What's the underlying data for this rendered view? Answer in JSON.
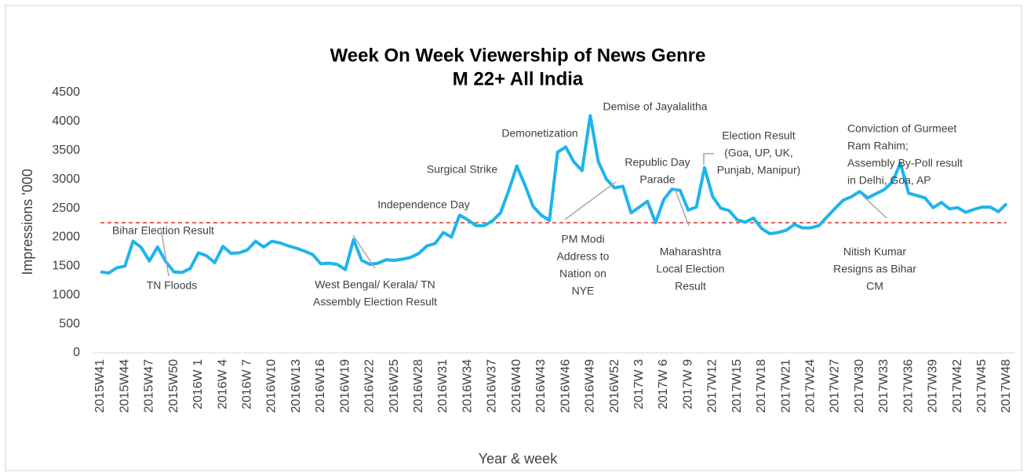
{
  "chart_data": {
    "type": "line",
    "title": [
      "Week On Week Viewership of News Genre",
      "M 22+ All India"
    ],
    "y_label": "Impressions '000",
    "x_label": "Year & week",
    "categories": [
      "2015W41",
      null,
      null,
      "2015W44",
      null,
      null,
      "2015W47",
      null,
      null,
      "2015W50",
      null,
      null,
      "2016W 1",
      null,
      null,
      "2016W 4",
      null,
      null,
      "2016W 7",
      null,
      null,
      "2016W10",
      null,
      null,
      "2016W13",
      null,
      null,
      "2016W16",
      null,
      null,
      "2016W19",
      null,
      null,
      "2016W22",
      null,
      null,
      "2016W25",
      null,
      null,
      "2016W28",
      null,
      null,
      "2016W31",
      null,
      null,
      "2016W34",
      null,
      null,
      "2016W37",
      null,
      null,
      "2016W40",
      null,
      null,
      "2016W43",
      null,
      null,
      "2016W46",
      null,
      null,
      "2016W49",
      null,
      null,
      "2016W52",
      null,
      null,
      "2017W 3",
      null,
      null,
      "2017W 6",
      null,
      null,
      "2017W 9",
      null,
      null,
      "2017W12",
      null,
      null,
      "2017W15",
      null,
      null,
      "2017W18",
      null,
      null,
      "2017W21",
      null,
      null,
      "2017W24",
      null,
      null,
      "2017W27",
      null,
      null,
      "2017W30",
      null,
      null,
      "2017W33",
      null,
      null,
      "2017W36",
      null,
      null,
      "2017W39",
      null,
      null,
      "2017W42",
      null,
      null,
      "2017W45",
      null,
      null,
      "2017W48"
    ],
    "series": [
      {
        "name": "Impressions",
        "color": "#1eb4ec",
        "values": [
          1400,
          1380,
          1470,
          1500,
          1930,
          1820,
          1590,
          1830,
          1580,
          1400,
          1390,
          1460,
          1730,
          1680,
          1560,
          1840,
          1720,
          1730,
          1780,
          1930,
          1830,
          1930,
          1900,
          1850,
          1810,
          1760,
          1700,
          1540,
          1550,
          1530,
          1440,
          1960,
          1600,
          1530,
          1550,
          1610,
          1600,
          1620,
          1650,
          1720,
          1850,
          1890,
          2080,
          2000,
          2380,
          2300,
          2200,
          2200,
          2280,
          2420,
          2800,
          3230,
          2900,
          2530,
          2380,
          2290,
          3470,
          3560,
          3300,
          3150,
          4100,
          3300,
          3000,
          2850,
          2880,
          2420,
          2520,
          2620,
          2250,
          2650,
          2830,
          2810,
          2470,
          2520,
          3200,
          2700,
          2500,
          2460,
          2300,
          2260,
          2330,
          2150,
          2060,
          2080,
          2120,
          2220,
          2160,
          2160,
          2200,
          2350,
          2500,
          2640,
          2700,
          2790,
          2680,
          2750,
          2820,
          2950,
          3280,
          2760,
          2720,
          2680,
          2510,
          2600,
          2490,
          2510,
          2430,
          2480,
          2520,
          2520,
          2440,
          2580
        ]
      }
    ],
    "reference_line": {
      "value": 2250,
      "color": "#d9312b"
    },
    "ylim": [
      0,
      4500
    ],
    "yticks": [
      0,
      500,
      1000,
      1500,
      2000,
      2500,
      3000,
      3500,
      4000,
      4500
    ],
    "annotations": [
      [
        "Bihar Election Result"
      ],
      [
        "TN Floods"
      ],
      [
        "West Bengal/ Kerala/ TN",
        "Assembly Election Result"
      ],
      [
        "Independence Day"
      ],
      [
        "Surgical Strike"
      ],
      [
        "Demonetization"
      ],
      [
        "Demise of Jayalalitha"
      ],
      [
        "Republic Day",
        "Parade"
      ],
      [
        "PM Modi",
        "Address to",
        "Nation on",
        "NYE"
      ],
      [
        "Maharashtra",
        "Local Election",
        "Result"
      ],
      [
        "Election Result",
        "(Goa, UP, UK,",
        "Punjab, Manipur)"
      ],
      [
        "Conviction of Gurmeet",
        "Ram Rahim;",
        "Assembly By-Poll result",
        "in Delhi, Goa, AP"
      ],
      [
        "Nitish Kumar",
        "Resigns as Bihar",
        "CM"
      ]
    ]
  }
}
